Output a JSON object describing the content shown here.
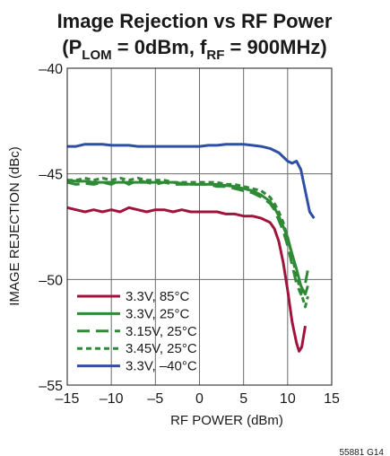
{
  "chart_data": {
    "type": "line",
    "title": {
      "line1": "Image Rejection vs RF Power",
      "line2_open": "(P",
      "line2_sub1": "LOM",
      "line2_mid": " = 0dBm, f",
      "line2_sub2": "RF",
      "line2_close": " = 900MHz)"
    },
    "xlabel": "RF POWER (dBm)",
    "ylabel": "IMAGE REJECTION (dBc)",
    "xlim": [
      -15,
      15
    ],
    "ylim": [
      -55,
      -40
    ],
    "xticks": [
      -15,
      -10,
      -5,
      0,
      5,
      10,
      15
    ],
    "xtick_labels": [
      "–15",
      "–10",
      "–5",
      "0",
      "5",
      "10",
      "15"
    ],
    "yticks": [
      -55,
      -50,
      -45,
      -40
    ],
    "ytick_labels": [
      "–55",
      "–50",
      "–45",
      "–40"
    ],
    "grid": true,
    "legend_position": "bottom-left",
    "figure_id": "55881 G14",
    "series": [
      {
        "name": "3.3V, 85°C",
        "color": "#a0143c",
        "dash": "solid",
        "points": [
          [
            -15,
            -46.6
          ],
          [
            -14,
            -46.7
          ],
          [
            -13,
            -46.8
          ],
          [
            -12,
            -46.7
          ],
          [
            -11,
            -46.8
          ],
          [
            -10,
            -46.7
          ],
          [
            -9,
            -46.8
          ],
          [
            -8,
            -46.6
          ],
          [
            -7,
            -46.7
          ],
          [
            -6,
            -46.8
          ],
          [
            -5,
            -46.7
          ],
          [
            -4,
            -46.7
          ],
          [
            -3,
            -46.8
          ],
          [
            -2,
            -46.7
          ],
          [
            -1,
            -46.8
          ],
          [
            0,
            -46.8
          ],
          [
            1,
            -46.8
          ],
          [
            2,
            -46.8
          ],
          [
            3,
            -46.9
          ],
          [
            4,
            -46.9
          ],
          [
            5,
            -47.0
          ],
          [
            6,
            -47.0
          ],
          [
            7,
            -47.1
          ],
          [
            8,
            -47.3
          ],
          [
            8.5,
            -47.6
          ],
          [
            9,
            -48.2
          ],
          [
            9.5,
            -49.2
          ],
          [
            10,
            -50.5
          ],
          [
            10.5,
            -52.0
          ],
          [
            11,
            -53.0
          ],
          [
            11.3,
            -53.4
          ],
          [
            11.6,
            -53.2
          ],
          [
            12,
            -52.2
          ]
        ]
      },
      {
        "name": "3.3V, 25°C",
        "color": "#2e8a34",
        "dash": "solid",
        "points": [
          [
            -15,
            -45.3
          ],
          [
            -14,
            -45.35
          ],
          [
            -13,
            -45.35
          ],
          [
            -12,
            -45.4
          ],
          [
            -11,
            -45.4
          ],
          [
            -10,
            -45.4
          ],
          [
            -9,
            -45.4
          ],
          [
            -8,
            -45.4
          ],
          [
            -7,
            -45.4
          ],
          [
            -6,
            -45.4
          ],
          [
            -5,
            -45.4
          ],
          [
            -4,
            -45.4
          ],
          [
            -3,
            -45.4
          ],
          [
            -2,
            -45.45
          ],
          [
            -1,
            -45.5
          ],
          [
            0,
            -45.5
          ],
          [
            1,
            -45.5
          ],
          [
            2,
            -45.5
          ],
          [
            3,
            -45.55
          ],
          [
            4,
            -45.6
          ],
          [
            5,
            -45.7
          ],
          [
            6,
            -45.8
          ],
          [
            7,
            -46.0
          ],
          [
            8,
            -46.3
          ],
          [
            8.5,
            -46.6
          ],
          [
            9,
            -47.0
          ],
          [
            9.5,
            -47.5
          ],
          [
            10,
            -48.0
          ],
          [
            10.5,
            -48.8
          ],
          [
            11,
            -49.5
          ],
          [
            11.5,
            -50.3
          ],
          [
            12,
            -50.7
          ],
          [
            12.3,
            -50.3
          ]
        ]
      },
      {
        "name": "3.15V, 25°C",
        "color": "#2e8a34",
        "dash": "long",
        "points": [
          [
            -15,
            -45.4
          ],
          [
            -14,
            -45.5
          ],
          [
            -13,
            -45.45
          ],
          [
            -12,
            -45.5
          ],
          [
            -11,
            -45.4
          ],
          [
            -10,
            -45.5
          ],
          [
            -9,
            -45.3
          ],
          [
            -8,
            -45.5
          ],
          [
            -7,
            -45.3
          ],
          [
            -6,
            -45.4
          ],
          [
            -5,
            -45.5
          ],
          [
            -4,
            -45.4
          ],
          [
            -3,
            -45.5
          ],
          [
            -2,
            -45.5
          ],
          [
            -1,
            -45.5
          ],
          [
            0,
            -45.5
          ],
          [
            1,
            -45.5
          ],
          [
            2,
            -45.6
          ],
          [
            3,
            -45.6
          ],
          [
            4,
            -45.7
          ],
          [
            5,
            -45.8
          ],
          [
            6,
            -45.9
          ],
          [
            7,
            -46.1
          ],
          [
            8,
            -46.4
          ],
          [
            8.5,
            -46.7
          ],
          [
            9,
            -47.2
          ],
          [
            9.5,
            -47.7
          ],
          [
            10,
            -48.4
          ],
          [
            10.5,
            -49.3
          ],
          [
            11,
            -50.2
          ],
          [
            11.5,
            -50.7
          ],
          [
            12,
            -50.2
          ],
          [
            12.4,
            -49.3
          ]
        ]
      },
      {
        "name": "3.45V, 25°C",
        "color": "#2e8a34",
        "dash": "short",
        "points": [
          [
            -15,
            -45.3
          ],
          [
            -14,
            -45.3
          ],
          [
            -13,
            -45.2
          ],
          [
            -12,
            -45.3
          ],
          [
            -11,
            -45.2
          ],
          [
            -10,
            -45.3
          ],
          [
            -9,
            -45.2
          ],
          [
            -8,
            -45.3
          ],
          [
            -7,
            -45.2
          ],
          [
            -6,
            -45.3
          ],
          [
            -5,
            -45.3
          ],
          [
            -4,
            -45.3
          ],
          [
            -3,
            -45.4
          ],
          [
            -2,
            -45.4
          ],
          [
            -1,
            -45.4
          ],
          [
            0,
            -45.4
          ],
          [
            1,
            -45.4
          ],
          [
            2,
            -45.4
          ],
          [
            3,
            -45.5
          ],
          [
            4,
            -45.5
          ],
          [
            5,
            -45.6
          ],
          [
            6,
            -45.7
          ],
          [
            7,
            -45.8
          ],
          [
            8,
            -46.1
          ],
          [
            8.5,
            -46.4
          ],
          [
            9,
            -46.8
          ],
          [
            9.5,
            -47.3
          ],
          [
            10,
            -48.0
          ],
          [
            10.5,
            -48.9
          ],
          [
            11,
            -49.8
          ],
          [
            11.5,
            -50.6
          ],
          [
            12,
            -51.3
          ],
          [
            12.3,
            -50.8
          ]
        ]
      },
      {
        "name": "3.3V, –40°C",
        "color": "#2f4fa5",
        "dash": "solid",
        "points": [
          [
            -15,
            -43.7
          ],
          [
            -14,
            -43.7
          ],
          [
            -13,
            -43.6
          ],
          [
            -12,
            -43.6
          ],
          [
            -11,
            -43.6
          ],
          [
            -10,
            -43.65
          ],
          [
            -9,
            -43.65
          ],
          [
            -8,
            -43.65
          ],
          [
            -7,
            -43.7
          ],
          [
            -6,
            -43.7
          ],
          [
            -5,
            -43.7
          ],
          [
            -4,
            -43.7
          ],
          [
            -3,
            -43.7
          ],
          [
            -2,
            -43.7
          ],
          [
            -1,
            -43.7
          ],
          [
            0,
            -43.7
          ],
          [
            1,
            -43.65
          ],
          [
            2,
            -43.65
          ],
          [
            3,
            -43.6
          ],
          [
            4,
            -43.6
          ],
          [
            5,
            -43.6
          ],
          [
            6,
            -43.65
          ],
          [
            7,
            -43.7
          ],
          [
            8,
            -43.8
          ],
          [
            9,
            -44.0
          ],
          [
            10,
            -44.4
          ],
          [
            10.5,
            -44.5
          ],
          [
            11,
            -44.4
          ],
          [
            11.5,
            -44.8
          ],
          [
            12,
            -45.8
          ],
          [
            12.5,
            -46.8
          ],
          [
            13,
            -47.1
          ]
        ]
      }
    ]
  }
}
